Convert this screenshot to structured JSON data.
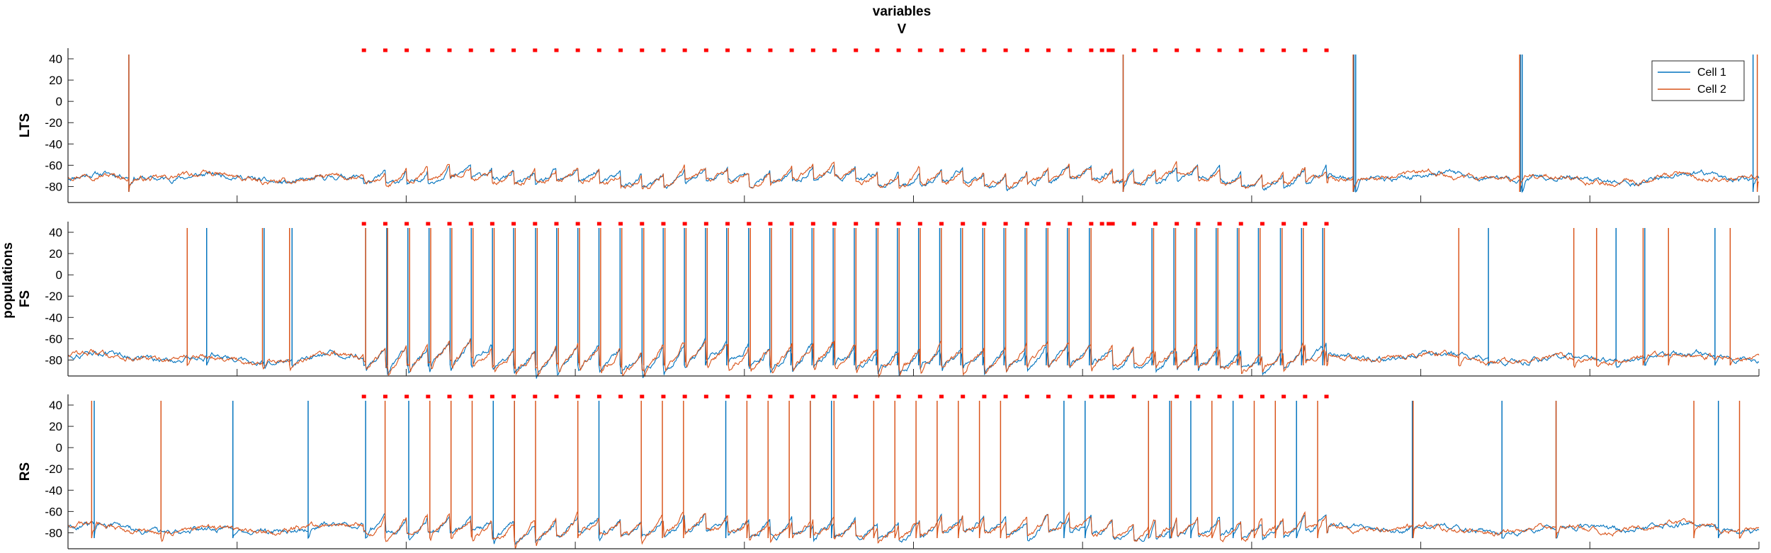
{
  "figure": {
    "title_line1": "variables",
    "title_line2": "V",
    "ylabel_group": "populations"
  },
  "legend": {
    "entries": [
      {
        "label": "Cell 1",
        "color": "#0072BD"
      },
      {
        "label": "Cell 2",
        "color": "#D95319"
      }
    ]
  },
  "axes": {
    "x_ticks": [
      0,
      200,
      400,
      600,
      800,
      1000,
      1200,
      1400,
      1600,
      1800,
      2000
    ],
    "y_ticks": [
      -80,
      -60,
      -40,
      -20,
      0,
      20,
      40
    ],
    "xlim": [
      0,
      2000
    ],
    "ylim": [
      -95,
      50
    ]
  },
  "colors": {
    "cell1": "#0072BD",
    "cell2": "#D95319",
    "marker": "#FF0000",
    "axis": "#262626"
  },
  "chart_data": {
    "type": "line",
    "panels": [
      {
        "name": "LTS",
        "baseline": -72,
        "markers": {
          "y": 48,
          "start": 350,
          "end": 1490,
          "step": 25.3,
          "gap": [
            1215,
            1235
          ]
        },
        "spikes": {
          "Cell 1": [
            72,
            1248,
            1521,
            1523,
            1718,
            1720,
            1993
          ],
          "Cell 2": [
            72,
            1248,
            1520,
            1717,
            1998
          ]
        },
        "oscillation": {
          "start": 350,
          "end": 1490,
          "period": 25.3,
          "amplitude": 12
        }
      },
      {
        "name": "FS",
        "baseline": -78,
        "markers": {
          "y": 48,
          "start": 350,
          "end": 1490,
          "step": 25.3,
          "gap": [
            1215,
            1235
          ]
        },
        "spikes": {
          "Cell 1": [
            164,
            232,
            265,
            352,
            377,
            402,
            427,
            452,
            477,
            502,
            527,
            553,
            578,
            603,
            628,
            653,
            679,
            704,
            729,
            754,
            779,
            805,
            830,
            855,
            880,
            905,
            930,
            956,
            981,
            1006,
            1031,
            1056,
            1082,
            1107,
            1132,
            1157,
            1182,
            1208,
            1282,
            1308,
            1333,
            1358,
            1383,
            1408,
            1434,
            1459,
            1484,
            1680,
            1831,
            1865,
            1948
          ],
          "Cell 2": [
            141,
            230,
            262,
            352,
            378,
            404,
            429,
            454,
            479,
            504,
            529,
            555,
            580,
            605,
            630,
            655,
            681,
            706,
            731,
            756,
            781,
            807,
            832,
            857,
            882,
            907,
            932,
            958,
            983,
            1008,
            1033,
            1058,
            1084,
            1109,
            1134,
            1159,
            1184,
            1210,
            1284,
            1310,
            1335,
            1360,
            1385,
            1410,
            1436,
            1461,
            1486,
            1645,
            1781,
            1808,
            1863,
            1893,
            1966
          ]
        },
        "oscillation": {
          "start": 350,
          "end": 1490,
          "period": 25.3,
          "amplitude": 18
        }
      },
      {
        "name": "RS",
        "baseline": -76,
        "markers": {
          "y": 48,
          "start": 350,
          "end": 1490,
          "step": 25.3,
          "gap": [
            1215,
            1235
          ]
        },
        "spikes": {
          "Cell 1": [
            31,
            195,
            284,
            352,
            403,
            503,
            528,
            628,
            778,
            878,
            903,
            1178,
            1203,
            1278,
            1303,
            1328,
            1378,
            1453,
            1590,
            1696,
            1760,
            1952
          ],
          "Cell 2": [
            28,
            110,
            375,
            428,
            453,
            478,
            528,
            553,
            603,
            678,
            703,
            728,
            803,
            828,
            853,
            878,
            906,
            953,
            978,
            1003,
            1028,
            1053,
            1078,
            1103,
            1278,
            1305,
            1353,
            1403,
            1428,
            1478,
            1591,
            1760,
            1923,
            1977
          ]
        },
        "oscillation": {
          "start": 350,
          "end": 1490,
          "period": 25.3,
          "amplitude": 16
        }
      }
    ]
  }
}
